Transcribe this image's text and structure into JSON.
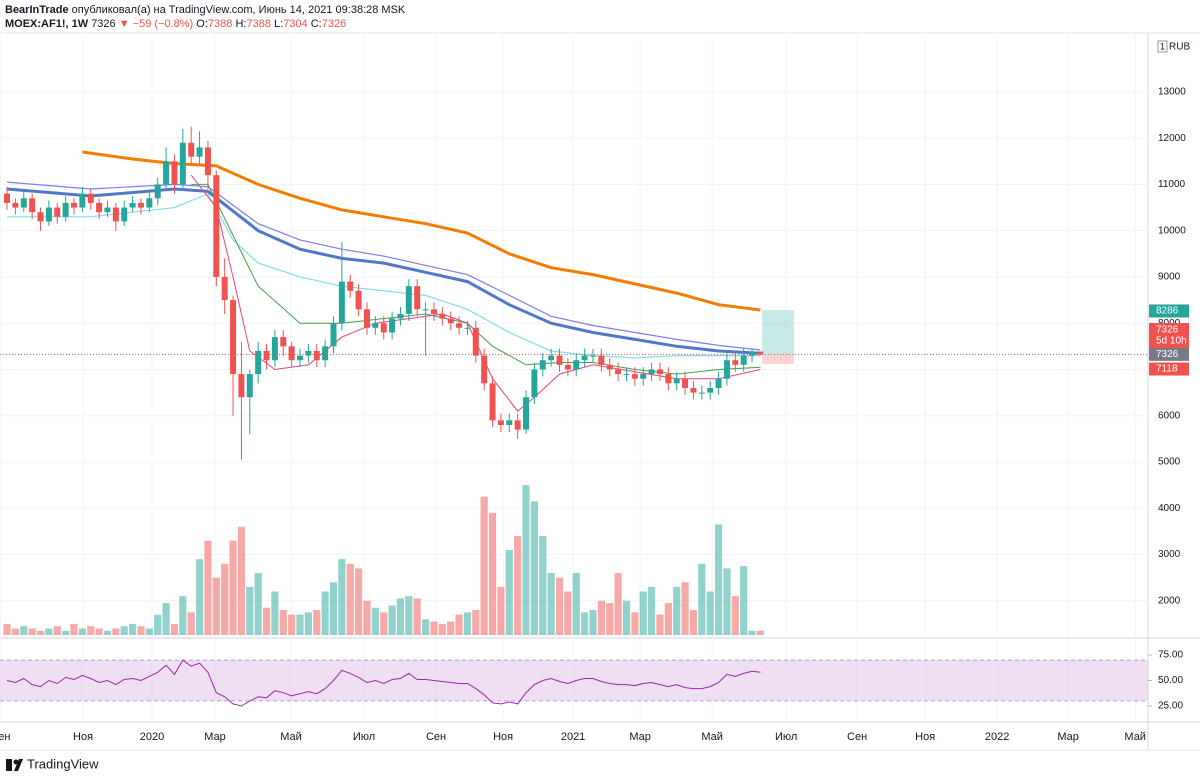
{
  "header": {
    "author": "BearInTrade",
    "published": "опубликовал(а) на TradingView.com, Июнь 14, 2021 09:38:28 MSK",
    "symbol": "MOEX:AF1!, 1W",
    "change": "▼ −59 (−0.8%)",
    "ohlc_labels": [
      "O:",
      "H:",
      "L:",
      "C:"
    ]
  },
  "footer": {
    "brand": "TradingView"
  },
  "chart_data": {
    "type": "candlestick",
    "currency": "RUB",
    "scale_badge": "1",
    "grid": true,
    "up_color": "#26a69a",
    "down_color": "#ef5350",
    "xlim": [
      -0.84,
      136.3
    ],
    "xticks": [
      {
        "value": -0.8,
        "label": "Сен"
      },
      {
        "value": 9.08,
        "label": "Ноя"
      },
      {
        "value": 17.32,
        "label": "2020"
      },
      {
        "value": 24.85,
        "label": "Мар"
      },
      {
        "value": 33.93,
        "label": "Май"
      },
      {
        "value": 42.65,
        "label": "Июл"
      },
      {
        "value": 51.25,
        "label": "Сен"
      },
      {
        "value": 59.26,
        "label": "Ноя"
      },
      {
        "value": 67.62,
        "label": "2021"
      },
      {
        "value": 75.63,
        "label": "Мар"
      },
      {
        "value": 84.23,
        "label": "Май"
      },
      {
        "value": 93.07,
        "label": "Июл"
      },
      {
        "value": 101.55,
        "label": "Сен"
      },
      {
        "value": 109.68,
        "label": "Ноя"
      },
      {
        "value": 118.28,
        "label": "2022"
      },
      {
        "value": 126.76,
        "label": "Мар"
      },
      {
        "value": 134.77,
        "label": "Май"
      }
    ],
    "ylim": [
      1260,
      14230
    ],
    "yticks": [
      2000,
      3000,
      4000,
      5000,
      6000,
      7000,
      8000,
      9000,
      10000,
      11000,
      12000,
      13000
    ],
    "ohlc": [
      [
        10800,
        10950,
        10450,
        10600
      ],
      [
        10600,
        10700,
        10350,
        10500
      ],
      [
        10500,
        10850,
        10400,
        10700
      ],
      [
        10700,
        10800,
        10250,
        10400
      ],
      [
        10400,
        10500,
        10000,
        10200
      ],
      [
        10200,
        10650,
        10100,
        10500
      ],
      [
        10500,
        10600,
        10150,
        10300
      ],
      [
        10300,
        10750,
        10200,
        10600
      ],
      [
        10600,
        10700,
        10350,
        10500
      ],
      [
        10500,
        10950,
        10400,
        10800
      ],
      [
        10800,
        10900,
        10450,
        10600
      ],
      [
        10600,
        10700,
        10250,
        10400
      ],
      [
        10400,
        10650,
        10300,
        10500
      ],
      [
        10500,
        10600,
        10000,
        10200
      ],
      [
        10200,
        10650,
        10100,
        10500
      ],
      [
        10500,
        10750,
        10400,
        10600
      ],
      [
        10600,
        10700,
        10350,
        10500
      ],
      [
        10500,
        10850,
        10400,
        10700
      ],
      [
        10700,
        11150,
        10550,
        11000
      ],
      [
        11000,
        11800,
        10900,
        11500
      ],
      [
        11500,
        11650,
        10800,
        11000
      ],
      [
        11000,
        12200,
        10900,
        11900
      ],
      [
        11900,
        12250,
        11450,
        11600
      ],
      [
        11600,
        12150,
        11450,
        11800
      ],
      [
        11800,
        11950,
        10900,
        11200
      ],
      [
        11200,
        11300,
        8800,
        9000
      ],
      [
        9000,
        9400,
        8200,
        8500
      ],
      [
        8500,
        8600,
        6000,
        6900
      ],
      [
        6900,
        7600,
        5050,
        6400
      ],
      [
        6400,
        7000,
        5600,
        6900
      ],
      [
        6900,
        7600,
        6700,
        7400
      ],
      [
        7400,
        7550,
        7000,
        7200
      ],
      [
        7200,
        7850,
        7050,
        7700
      ],
      [
        7700,
        7850,
        7300,
        7500
      ],
      [
        7500,
        7600,
        7050,
        7200
      ],
      [
        7200,
        7450,
        7050,
        7300
      ],
      [
        7300,
        7550,
        7150,
        7400
      ],
      [
        7400,
        7550,
        7050,
        7200
      ],
      [
        7200,
        7650,
        7050,
        7500
      ],
      [
        7500,
        8150,
        7350,
        8000
      ],
      [
        8000,
        9750,
        7850,
        8900
      ],
      [
        8900,
        9050,
        8550,
        8700
      ],
      [
        8700,
        8850,
        8150,
        8300
      ],
      [
        8300,
        8450,
        7750,
        7900
      ],
      [
        7900,
        8150,
        7750,
        8000
      ],
      [
        8000,
        8150,
        7650,
        7800
      ],
      [
        7800,
        8250,
        7650,
        8100
      ],
      [
        8100,
        8350,
        7950,
        8200
      ],
      [
        8200,
        8950,
        8050,
        8800
      ],
      [
        8800,
        8950,
        8150,
        8300
      ],
      [
        8300,
        8450,
        7300,
        8300
      ],
      [
        8300,
        8450,
        8050,
        8200
      ],
      [
        8200,
        8350,
        7950,
        8100
      ],
      [
        8100,
        8250,
        7850,
        8000
      ],
      [
        8000,
        8150,
        7750,
        7900
      ],
      [
        7900,
        8050,
        7750,
        7900
      ],
      [
        7900,
        8050,
        7150,
        7300
      ],
      [
        7300,
        7450,
        6550,
        6700
      ],
      [
        6700,
        6850,
        5750,
        5900
      ],
      [
        5900,
        6050,
        5650,
        5800
      ],
      [
        5800,
        6050,
        5650,
        5900
      ],
      [
        5900,
        6050,
        5500,
        5700
      ],
      [
        5700,
        6550,
        5600,
        6400
      ],
      [
        6400,
        7150,
        6250,
        7000
      ],
      [
        7000,
        7350,
        6850,
        7200
      ],
      [
        7200,
        7450,
        7050,
        7300
      ],
      [
        7300,
        7450,
        6950,
        7100
      ],
      [
        7100,
        7250,
        6850,
        7000
      ],
      [
        7000,
        7350,
        6850,
        7200
      ],
      [
        7200,
        7450,
        7050,
        7300
      ],
      [
        7300,
        7450,
        7150,
        7300
      ],
      [
        7300,
        7450,
        6950,
        7100
      ],
      [
        7100,
        7250,
        6850,
        7000
      ],
      [
        7000,
        7150,
        6750,
        6900
      ],
      [
        6900,
        7050,
        6750,
        6900
      ],
      [
        6900,
        7050,
        6650,
        6800
      ],
      [
        6800,
        7050,
        6650,
        6900
      ],
      [
        6900,
        7150,
        6750,
        7000
      ],
      [
        7000,
        7150,
        6750,
        6900
      ],
      [
        6900,
        7050,
        6550,
        6700
      ],
      [
        6700,
        6950,
        6550,
        6800
      ],
      [
        6800,
        6950,
        6450,
        6600
      ],
      [
        6600,
        6750,
        6350,
        6500
      ],
      [
        6500,
        6650,
        6350,
        6500
      ],
      [
        6500,
        6750,
        6350,
        6600
      ],
      [
        6600,
        6950,
        6450,
        6800
      ],
      [
        6800,
        7350,
        6650,
        7200
      ],
      [
        7200,
        7350,
        6950,
        7100
      ],
      [
        7100,
        7450,
        6950,
        7300
      ],
      [
        7300,
        7450,
        7150,
        7385
      ],
      [
        7388,
        7388,
        7304,
        7326
      ]
    ],
    "volume": [
      1500,
      1400,
      1450,
      1400,
      1350,
      1400,
      1450,
      1350,
      1500,
      1400,
      1450,
      1400,
      1350,
      1400,
      1450,
      1500,
      1450,
      1400,
      1700,
      1950,
      1500,
      2100,
      1750,
      2900,
      3300,
      2500,
      2800,
      3300,
      3600,
      2300,
      2600,
      1850,
      2200,
      1800,
      1700,
      1700,
      1750,
      1800,
      2200,
      2400,
      2900,
      2800,
      2700,
      2000,
      1850,
      1750,
      1900,
      2050,
      2100,
      2050,
      1600,
      1550,
      1500,
      1550,
      1700,
      1750,
      1800,
      4250,
      3900,
      2300,
      3100,
      3400,
      4500,
      4150,
      3400,
      2600,
      2500,
      2200,
      2600,
      1750,
      1800,
      2000,
      1950,
      2600,
      2000,
      1750,
      2200,
      2300,
      1700,
      1950,
      2300,
      2400,
      1800,
      2800,
      2200,
      3650,
      2700,
      2100,
      2750,
      1350,
      1350
    ],
    "ma": [
      {
        "color": "#f57c00",
        "width": 3,
        "x": [
          9,
          15,
          20,
          25,
          30,
          35,
          40,
          45,
          50,
          55,
          60,
          65,
          70,
          75,
          80,
          85,
          90
        ],
        "values": [
          11700,
          11550,
          11450,
          11400,
          11000,
          10700,
          10450,
          10300,
          10150,
          9950,
          9500,
          9200,
          9050,
          8850,
          8650,
          8400,
          8286
        ]
      },
      {
        "color": "#7b7fe8",
        "width": 1.2,
        "x": [
          0,
          10,
          20,
          24,
          30,
          35,
          40,
          45,
          50,
          55,
          60,
          65,
          70,
          75,
          80,
          85,
          90
        ],
        "values": [
          11050,
          10900,
          11000,
          10950,
          10150,
          9800,
          9600,
          9450,
          9250,
          9050,
          8600,
          8150,
          7950,
          7800,
          7650,
          7520,
          7420
        ]
      },
      {
        "color": "#4f79c8",
        "width": 3,
        "x": [
          0,
          10,
          20,
          24,
          30,
          35,
          40,
          45,
          50,
          55,
          60,
          65,
          70,
          75,
          80,
          85,
          90
        ],
        "values": [
          10900,
          10750,
          10900,
          10850,
          10000,
          9600,
          9400,
          9300,
          9100,
          8900,
          8400,
          8000,
          7800,
          7650,
          7500,
          7400,
          7350
        ]
      },
      {
        "color": "#80deea",
        "width": 1.2,
        "x": [
          0,
          10,
          20,
          24,
          27,
          30,
          35,
          40,
          45,
          50,
          55,
          60,
          65,
          70,
          75,
          80,
          85,
          90
        ],
        "values": [
          10300,
          10300,
          10500,
          10800,
          9800,
          9300,
          9000,
          8800,
          8700,
          8600,
          8300,
          7800,
          7400,
          7300,
          7250,
          7300,
          7300,
          7300
        ]
      },
      {
        "color": "#43a047",
        "width": 1,
        "x": [
          22,
          24,
          27,
          30,
          35,
          40,
          45,
          50,
          55,
          58,
          62,
          66,
          70,
          75,
          80,
          85,
          90
        ],
        "values": [
          11000,
          11000,
          9900,
          8800,
          8000,
          8000,
          8100,
          8200,
          8000,
          7500,
          7100,
          7150,
          7150,
          7000,
          6900,
          7000,
          7050
        ]
      },
      {
        "color": "#ec407a",
        "width": 1,
        "x": [
          22,
          25,
          27,
          29,
          32,
          36,
          40,
          44,
          48,
          52,
          55,
          58,
          61,
          63,
          66,
          70,
          75,
          80,
          85,
          90
        ],
        "values": [
          11200,
          10500,
          9000,
          7400,
          7000,
          7100,
          7700,
          8000,
          8100,
          8200,
          8000,
          6800,
          6100,
          6400,
          6900,
          7100,
          6950,
          6800,
          6800,
          7000
        ]
      }
    ],
    "position": {
      "entry": 7326,
      "target": 8286,
      "stop": 7118
    },
    "countdown": "5d 10h",
    "rsi": {
      "color": "#9c27b0",
      "band_color": "#e1bee7",
      "ylim": [
        9.3,
        89.7
      ],
      "band": [
        30,
        70
      ],
      "yticks": [
        {
          "value": 25,
          "label": "25.00"
        },
        {
          "value": 50,
          "label": "50.00"
        },
        {
          "value": 75,
          "label": "75.00"
        }
      ],
      "values": [
        50,
        48,
        52,
        46,
        44,
        50,
        47,
        53,
        51,
        55,
        52,
        48,
        50,
        46,
        51,
        52,
        50,
        54,
        58,
        65,
        56,
        70,
        64,
        67,
        58,
        38,
        34,
        27,
        25,
        30,
        34,
        33,
        40,
        38,
        35,
        37,
        39,
        37,
        42,
        50,
        60,
        57,
        53,
        48,
        50,
        47,
        51,
        52,
        57,
        51,
        51,
        50,
        49,
        48,
        47,
        47,
        42,
        36,
        28,
        27,
        29,
        27,
        38,
        46,
        50,
        52,
        49,
        47,
        50,
        52,
        52,
        49,
        47,
        46,
        46,
        45,
        47,
        48,
        46,
        44,
        46,
        43,
        42,
        42,
        44,
        48,
        56,
        54,
        57,
        59,
        58
      ]
    }
  }
}
